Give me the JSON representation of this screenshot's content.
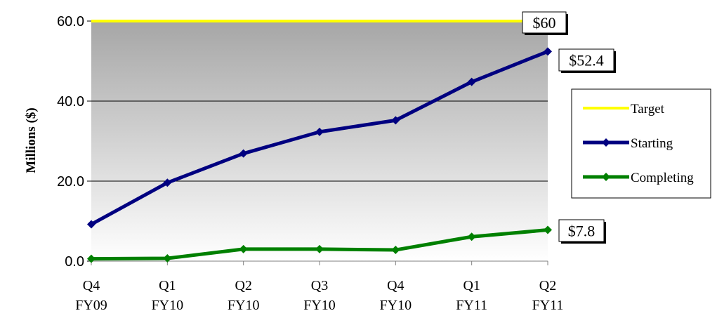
{
  "chart_data": {
    "type": "line",
    "ylabel": "Millions ($)",
    "ylim": [
      0,
      60
    ],
    "yticks": [
      "0.0",
      "20.0",
      "40.0",
      "60.0"
    ],
    "categories": [
      [
        "Q4",
        "FY09"
      ],
      [
        "Q1",
        "FY10"
      ],
      [
        "Q2",
        "FY10"
      ],
      [
        "Q3",
        "FY10"
      ],
      [
        "Q4",
        "FY10"
      ],
      [
        "Q1",
        "FY11"
      ],
      [
        "Q2",
        "FY11"
      ]
    ],
    "grid": "horizontal",
    "legend_position": "right",
    "series": [
      {
        "name": "Target",
        "color": "#ffff00",
        "marker": false,
        "values": [
          60,
          60,
          60,
          60,
          60,
          60,
          60
        ]
      },
      {
        "name": "Starting",
        "color": "#000080",
        "marker": true,
        "values": [
          9.2,
          19.6,
          26.9,
          32.3,
          35.2,
          44.8,
          52.4
        ]
      },
      {
        "name": "Completing",
        "color": "#008000",
        "marker": true,
        "values": [
          0.6,
          0.7,
          3.0,
          3.0,
          2.8,
          6.1,
          7.8
        ]
      }
    ],
    "annotations": [
      {
        "text": "$60",
        "series": "Target"
      },
      {
        "text": "$52.4",
        "series": "Starting"
      },
      {
        "text": "$7.8",
        "series": "Completing"
      }
    ]
  }
}
